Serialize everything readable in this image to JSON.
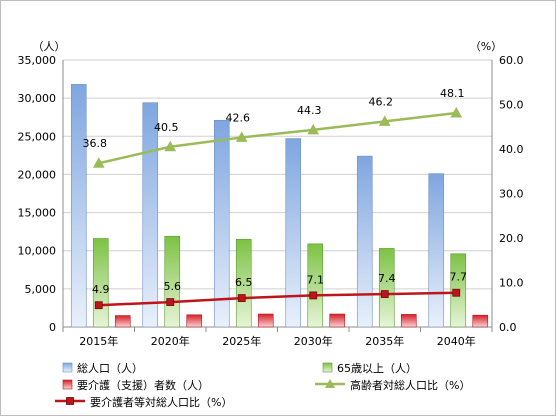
{
  "chart_data": {
    "type": "bar",
    "categories": [
      "2015年",
      "2020年",
      "2025年",
      "2030年",
      "2035年",
      "2040年"
    ],
    "y_left": {
      "unit": "（人）",
      "range": [
        0,
        35000
      ],
      "ticks": [
        "0",
        "5,000",
        "10,000",
        "15,000",
        "20,000",
        "25,000",
        "30,000",
        "35,000"
      ]
    },
    "y_right": {
      "unit": "（%）",
      "range": [
        0,
        60
      ],
      "ticks": [
        "0.0",
        "10.0",
        "20.0",
        "30.0",
        "40.0",
        "50.0",
        "60.0"
      ]
    },
    "grid": true,
    "legend_position": "bottom",
    "series": [
      {
        "name": "総人口（人）",
        "kind": "bar",
        "axis": "left",
        "color": "#9cbbe8",
        "values": [
          31800,
          29400,
          27100,
          24700,
          22400,
          20100
        ]
      },
      {
        "name": "65歳以上（人）",
        "kind": "bar",
        "axis": "left",
        "color": "#92d050",
        "values": [
          11600,
          11900,
          11500,
          10900,
          10300,
          9600
        ]
      },
      {
        "name": "要介護（支援）者数（人）",
        "kind": "bar",
        "axis": "left",
        "color": "#e8373e",
        "values": [
          1500,
          1600,
          1700,
          1700,
          1650,
          1550
        ]
      },
      {
        "name": "高齢者対総人口比（%）",
        "kind": "line",
        "axis": "right",
        "color": "#9bbb59",
        "marker": "triangle",
        "values": [
          36.8,
          40.5,
          42.6,
          44.3,
          46.2,
          48.1
        ],
        "labels": [
          "36.8",
          "40.5",
          "42.6",
          "44.3",
          "46.2",
          "48.1"
        ]
      },
      {
        "name": "要介護者等対総人口比（%）",
        "kind": "line",
        "axis": "right",
        "color": "#c0141b",
        "marker": "square",
        "values": [
          4.9,
          5.6,
          6.5,
          7.1,
          7.4,
          7.7
        ],
        "labels": [
          "4.9",
          "5.6",
          "6.5",
          "7.1",
          "7.4",
          "7.7"
        ]
      }
    ]
  }
}
